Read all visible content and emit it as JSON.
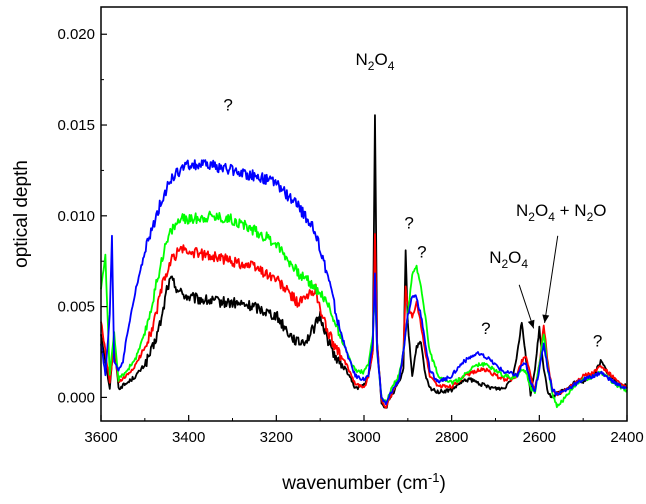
{
  "chart_data": {
    "type": "line",
    "title": "",
    "xlabel_base": "wavenumber (cm",
    "xlabel_exp": "-1",
    "xlabel_close": ")",
    "ylabel": "optical depth",
    "xlim": [
      3600,
      2400
    ],
    "ylim": [
      -0.0013,
      0.0215
    ],
    "x_reversed": true,
    "grid": false,
    "legend": "none",
    "x_ticks": [
      3600,
      3400,
      3200,
      3000,
      2800,
      2600,
      2400
    ],
    "x_tick_labels": [
      "3600",
      "3400",
      "3200",
      "3000",
      "2800",
      "2600",
      "2400"
    ],
    "y_ticks": [
      0.0,
      0.005,
      0.01,
      0.015,
      0.02
    ],
    "y_tick_labels": [
      "0.000",
      "0.005",
      "0.010",
      "0.015",
      "0.020"
    ],
    "series": [
      {
        "color": "#000000",
        "x": [
          3600,
          3580,
          3570,
          3560,
          3540,
          3520,
          3500,
          3480,
          3460,
          3450,
          3440,
          3420,
          3400,
          3350,
          3300,
          3250,
          3200,
          3170,
          3150,
          3130,
          3110,
          3100,
          3080,
          3060,
          3040,
          3020,
          3000,
          2990,
          2980,
          2975,
          2970,
          2960,
          2950,
          2940,
          2930,
          2920,
          2910,
          2905,
          2900,
          2890,
          2880,
          2870,
          2860,
          2850,
          2830,
          2800,
          2780,
          2760,
          2740,
          2720,
          2700,
          2680,
          2660,
          2650,
          2640,
          2630,
          2620,
          2610,
          2600,
          2590,
          2580,
          2570,
          2560,
          2540,
          2520,
          2500,
          2480,
          2470,
          2460,
          2440,
          2420,
          2400
        ],
        "y": [
          0.0035,
          0.0005,
          0.0032,
          0.0005,
          0.0008,
          0.0012,
          0.0018,
          0.0028,
          0.0045,
          0.006,
          0.0065,
          0.0058,
          0.0055,
          0.0053,
          0.0052,
          0.005,
          0.0045,
          0.0035,
          0.003,
          0.0032,
          0.004,
          0.0045,
          0.003,
          0.002,
          0.0015,
          0.0005,
          0.0007,
          0.0011,
          0.0025,
          0.0155,
          0.003,
          -0.0003,
          -0.0006,
          0.0,
          0.0004,
          0.0008,
          0.0015,
          0.0082,
          0.004,
          0.0012,
          0.0028,
          0.003,
          0.0012,
          0.0005,
          0.0003,
          0.0004,
          0.0008,
          0.001,
          0.0008,
          0.0006,
          0.0005,
          0.0005,
          0.0012,
          0.0025,
          0.0042,
          0.002,
          0.0002,
          0.0015,
          0.0038,
          0.0015,
          0.0003,
          0.0,
          0.0002,
          0.0004,
          0.0008,
          0.0009,
          0.0012,
          0.0015,
          0.002,
          0.0012,
          0.0008,
          0.0006
        ]
      },
      {
        "color": "#ff0000",
        "x": [
          3600,
          3580,
          3570,
          3560,
          3540,
          3520,
          3500,
          3480,
          3460,
          3440,
          3420,
          3400,
          3350,
          3300,
          3250,
          3200,
          3170,
          3150,
          3130,
          3110,
          3100,
          3080,
          3060,
          3040,
          3020,
          3000,
          2990,
          2980,
          2975,
          2970,
          2960,
          2950,
          2940,
          2930,
          2920,
          2910,
          2905,
          2900,
          2890,
          2880,
          2870,
          2860,
          2850,
          2830,
          2800,
          2780,
          2760,
          2740,
          2720,
          2700,
          2680,
          2660,
          2650,
          2640,
          2630,
          2620,
          2610,
          2600,
          2590,
          2580,
          2570,
          2560,
          2540,
          2520,
          2500,
          2480,
          2460,
          2440,
          2420,
          2400
        ],
        "y": [
          0.0042,
          0.0008,
          0.003,
          0.0008,
          0.0012,
          0.0018,
          0.0028,
          0.004,
          0.0062,
          0.0075,
          0.0082,
          0.008,
          0.0078,
          0.0075,
          0.0072,
          0.0065,
          0.0057,
          0.0052,
          0.0055,
          0.006,
          0.0048,
          0.0035,
          0.0025,
          0.0018,
          0.0008,
          0.0005,
          0.0012,
          0.0025,
          0.009,
          0.003,
          -0.0002,
          -0.0005,
          0.0,
          0.0006,
          0.001,
          0.0025,
          0.006,
          0.005,
          0.0045,
          0.0052,
          0.004,
          0.0025,
          0.0012,
          0.0006,
          0.0006,
          0.001,
          0.0013,
          0.0015,
          0.0015,
          0.0012,
          0.001,
          0.001,
          0.0013,
          0.002,
          0.0023,
          0.0012,
          0.0004,
          0.0018,
          0.004,
          0.0018,
          0.0004,
          0.0002,
          0.0004,
          0.0008,
          0.0012,
          0.0013,
          0.0017,
          0.0013,
          0.0008,
          0.0005
        ]
      },
      {
        "color": "#00ff00",
        "x": [
          3600,
          3590,
          3580,
          3570,
          3560,
          3540,
          3520,
          3500,
          3480,
          3460,
          3440,
          3420,
          3400,
          3350,
          3300,
          3250,
          3200,
          3170,
          3150,
          3130,
          3110,
          3100,
          3080,
          3060,
          3040,
          3020,
          3000,
          2990,
          2980,
          2975,
          2970,
          2960,
          2950,
          2940,
          2930,
          2920,
          2910,
          2900,
          2890,
          2880,
          2870,
          2860,
          2850,
          2830,
          2800,
          2780,
          2760,
          2740,
          2720,
          2700,
          2680,
          2660,
          2650,
          2640,
          2630,
          2620,
          2610,
          2600,
          2590,
          2580,
          2570,
          2560,
          2540,
          2520,
          2500,
          2480,
          2460,
          2440,
          2420,
          2400
        ],
        "y": [
          0.006,
          0.0078,
          0.0012,
          0.0035,
          0.001,
          0.0015,
          0.0022,
          0.0035,
          0.0055,
          0.0078,
          0.0092,
          0.0098,
          0.0098,
          0.01,
          0.0098,
          0.0092,
          0.0085,
          0.0075,
          0.0068,
          0.0065,
          0.006,
          0.0058,
          0.005,
          0.0038,
          0.0025,
          0.0015,
          0.0014,
          0.0018,
          0.0035,
          0.006,
          0.0025,
          0.0,
          -0.0003,
          0.0003,
          0.0008,
          0.0012,
          0.0025,
          0.0045,
          0.0068,
          0.0072,
          0.006,
          0.0045,
          0.0025,
          0.0012,
          0.0008,
          0.001,
          0.0015,
          0.0018,
          0.0018,
          0.0015,
          0.0012,
          0.0011,
          0.0012,
          0.0015,
          0.0014,
          0.0005,
          0.0003,
          0.0018,
          0.0035,
          0.0015,
          0.0002,
          -0.0005,
          0.0,
          0.0006,
          0.001,
          0.0011,
          0.0014,
          0.001,
          0.0006,
          0.0004
        ]
      },
      {
        "color": "#0000ff",
        "x": [
          3600,
          3590,
          3580,
          3575,
          3570,
          3560,
          3550,
          3540,
          3520,
          3500,
          3480,
          3460,
          3440,
          3420,
          3400,
          3380,
          3350,
          3300,
          3250,
          3200,
          3150,
          3120,
          3100,
          3080,
          3060,
          3040,
          3020,
          3000,
          2990,
          2980,
          2975,
          2970,
          2960,
          2950,
          2940,
          2930,
          2920,
          2910,
          2900,
          2890,
          2880,
          2870,
          2860,
          2850,
          2830,
          2800,
          2780,
          2760,
          2740,
          2720,
          2700,
          2680,
          2660,
          2650,
          2640,
          2630,
          2620,
          2610,
          2600,
          2590,
          2580,
          2570,
          2560,
          2540,
          2520,
          2500,
          2480,
          2460,
          2440,
          2420,
          2400
        ],
        "y": [
          0.003,
          0.0012,
          0.0045,
          0.0088,
          0.002,
          0.0015,
          0.002,
          0.0035,
          0.006,
          0.008,
          0.0095,
          0.011,
          0.012,
          0.0125,
          0.0128,
          0.0128,
          0.0128,
          0.0125,
          0.0122,
          0.0118,
          0.0105,
          0.0095,
          0.0082,
          0.0065,
          0.0042,
          0.0025,
          0.0012,
          0.001,
          0.0012,
          0.003,
          0.0068,
          0.0025,
          0.0,
          -0.0004,
          0.0002,
          0.0006,
          0.001,
          0.0025,
          0.0045,
          0.0056,
          0.0055,
          0.0045,
          0.003,
          0.0015,
          0.0008,
          0.0012,
          0.0018,
          0.0022,
          0.0024,
          0.0022,
          0.0018,
          0.0014,
          0.0013,
          0.0012,
          0.0018,
          0.0018,
          0.0008,
          0.0004,
          0.0015,
          0.003,
          0.0015,
          0.0004,
          0.0002,
          0.0004,
          0.0007,
          0.001,
          0.0011,
          0.0014,
          0.001,
          0.0007,
          0.0005
        ]
      }
    ],
    "annotations": [
      {
        "type": "text",
        "text": "?",
        "x": 3310,
        "y": 0.0158
      },
      {
        "type": "chem",
        "parts": [
          [
            "N",
            false
          ],
          [
            "2",
            true
          ],
          [
            "O",
            false
          ],
          [
            "4",
            true
          ]
        ],
        "x": 2975,
        "y": 0.0183
      },
      {
        "type": "text",
        "text": "?",
        "x": 2897,
        "y": 0.0093
      },
      {
        "type": "text",
        "text": "?",
        "x": 2868,
        "y": 0.0077
      },
      {
        "type": "text",
        "text": "?",
        "x": 2722,
        "y": 0.0035
      },
      {
        "type": "chem",
        "parts": [
          [
            "N",
            false
          ],
          [
            "2",
            true
          ],
          [
            "O",
            false
          ],
          [
            "4",
            true
          ]
        ],
        "x": 2670,
        "y": 0.0074
      },
      {
        "type": "chem",
        "parts": [
          [
            "N",
            false
          ],
          [
            "2",
            true
          ],
          [
            "O",
            false
          ],
          [
            "4",
            true
          ],
          [
            " + N",
            false
          ],
          [
            "2",
            true
          ],
          [
            "O",
            false
          ]
        ],
        "x": 2550,
        "y": 0.01
      },
      {
        "type": "text",
        "text": "?",
        "x": 2467,
        "y": 0.0028
      }
    ],
    "arrows": [
      {
        "from": [
          2646,
          0.0062
        ],
        "to": [
          2613,
          0.0038
        ]
      },
      {
        "from": [
          2558,
          0.0089
        ],
        "to": [
          2588,
          0.0041
        ]
      }
    ]
  }
}
